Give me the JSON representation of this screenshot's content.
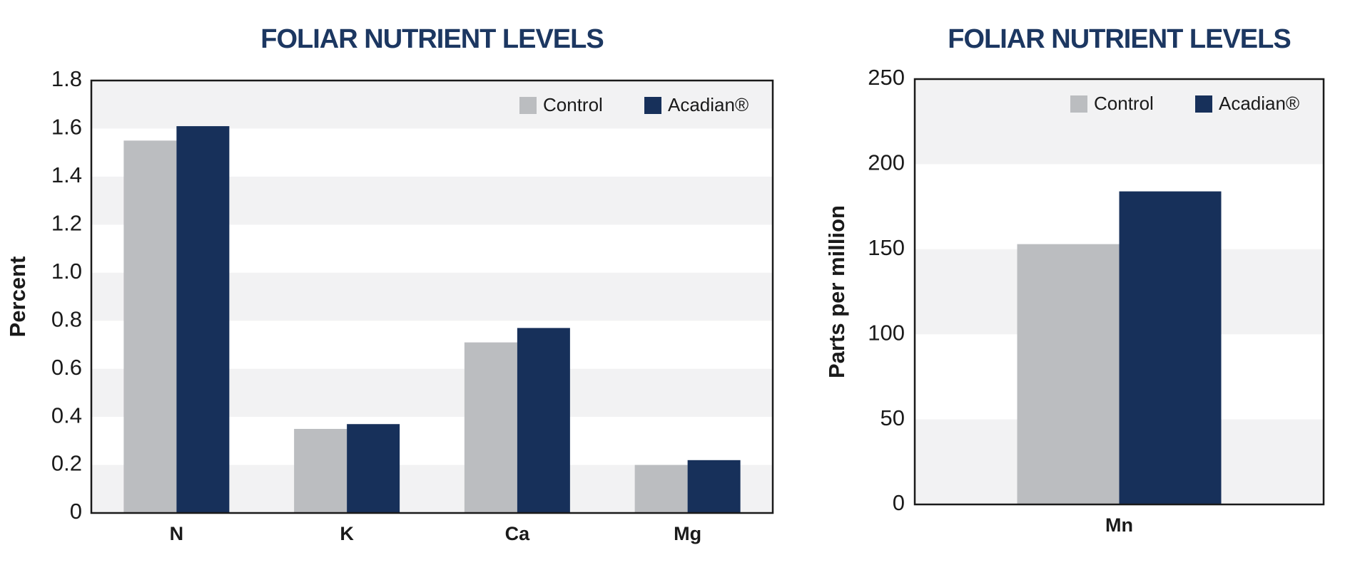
{
  "chart_data": [
    {
      "type": "bar",
      "title": "FOLIAR NUTRIENT LEVELS",
      "y_label": "Percent",
      "categories": [
        "N",
        "K",
        "Ca",
        "Mg"
      ],
      "series": [
        {
          "name": "Control",
          "color": "#bbbdc0",
          "values": [
            1.55,
            0.35,
            0.71,
            0.2
          ]
        },
        {
          "name": "Acadian®",
          "color": "#17305a",
          "values": [
            1.61,
            0.37,
            0.77,
            0.22
          ]
        }
      ],
      "ylim": [
        0,
        1.8
      ],
      "yticks": [
        0,
        0.2,
        0.4,
        0.6,
        0.8,
        {
          "value": 1,
          "label": "1.0"
        },
        1.2,
        1.4,
        1.6,
        1.8
      ],
      "grid": "bands",
      "legend": "top right"
    },
    {
      "type": "bar",
      "title": "FOLIAR NUTRIENT LEVELS",
      "y_label": "Parts per million",
      "categories": [
        "Mn"
      ],
      "series": [
        {
          "name": "Control",
          "color": "#bbbdc0",
          "values": [
            153
          ]
        },
        {
          "name": "Acadian®",
          "color": "#17305a",
          "values": [
            184
          ]
        }
      ],
      "ylim": [
        0,
        250
      ],
      "yticks": [
        0,
        50,
        100,
        150,
        200,
        250
      ],
      "grid": "bands",
      "legend": "top right"
    }
  ]
}
